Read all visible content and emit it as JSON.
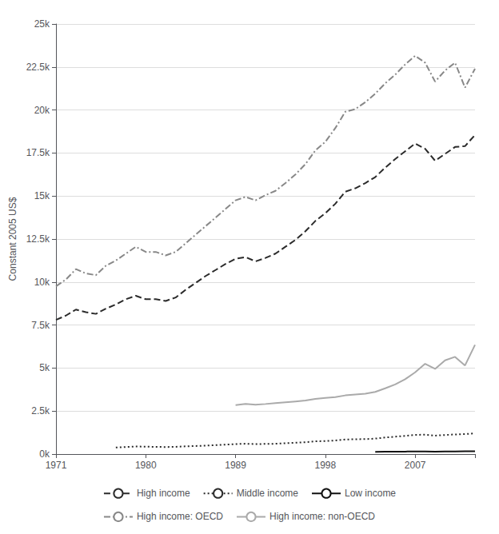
{
  "chart_data": {
    "type": "line",
    "ylabel": "Constant 2005 US$",
    "xlim": [
      1971,
      2013
    ],
    "xticks": [
      1971,
      1980,
      1989,
      1998,
      2007
    ],
    "ylim": [
      0,
      25000
    ],
    "yticks": [
      {
        "value": 0,
        "label": "0k"
      },
      {
        "value": 2500,
        "label": "2.5k"
      },
      {
        "value": 5000,
        "label": "5k"
      },
      {
        "value": 7500,
        "label": "7.5k"
      },
      {
        "value": 10000,
        "label": "10k"
      },
      {
        "value": 12500,
        "label": "12.5k"
      },
      {
        "value": 15000,
        "label": "15k"
      },
      {
        "value": 17500,
        "label": "17.5k"
      },
      {
        "value": 20000,
        "label": "20k"
      },
      {
        "value": 22500,
        "label": "22.5k"
      },
      {
        "value": 25000,
        "label": "25k"
      }
    ],
    "grid": true,
    "legend": "bottom",
    "series": [
      {
        "name": "High income",
        "color": "#2b2b2b",
        "line_style": "dashed",
        "x": [
          1971,
          1972,
          1973,
          1974,
          1975,
          1976,
          1977,
          1978,
          1979,
          1980,
          1981,
          1982,
          1983,
          1984,
          1985,
          1986,
          1987,
          1988,
          1989,
          1990,
          1991,
          1992,
          1993,
          1994,
          1995,
          1996,
          1997,
          1998,
          1999,
          2000,
          2001,
          2002,
          2003,
          2004,
          2005,
          2006,
          2007,
          2008,
          2009,
          2010,
          2011,
          2012,
          2013
        ],
        "values": [
          7800,
          8050,
          8400,
          8250,
          8150,
          8450,
          8700,
          9000,
          9200,
          9000,
          9000,
          8900,
          9100,
          9550,
          9950,
          10350,
          10700,
          11050,
          11350,
          11450,
          11200,
          11400,
          11650,
          12050,
          12450,
          12950,
          13550,
          14000,
          14550,
          15250,
          15450,
          15750,
          16100,
          16650,
          17150,
          17600,
          18050,
          17750,
          17050,
          17450,
          17850,
          17900,
          18550
        ]
      },
      {
        "name": "Middle income",
        "color": "#2b2b2b",
        "line_style": "dotted",
        "x": [
          1977,
          1978,
          1979,
          1980,
          1981,
          1982,
          1983,
          1984,
          1985,
          1986,
          1987,
          1988,
          1989,
          1990,
          1991,
          1992,
          1993,
          1994,
          1995,
          1996,
          1997,
          1998,
          1999,
          2000,
          2001,
          2002,
          2003,
          2004,
          2005,
          2006,
          2007,
          2008,
          2009,
          2010,
          2011,
          2012,
          2013
        ],
        "values": [
          380,
          410,
          440,
          430,
          420,
          410,
          420,
          450,
          470,
          490,
          520,
          550,
          580,
          600,
          580,
          590,
          600,
          630,
          660,
          690,
          740,
          760,
          790,
          850,
          860,
          870,
          900,
          960,
          1010,
          1060,
          1110,
          1130,
          1070,
          1110,
          1140,
          1160,
          1210
        ]
      },
      {
        "name": "Low income",
        "color": "#111111",
        "line_style": "solid",
        "x": [
          2003,
          2004,
          2005,
          2006,
          2007,
          2008,
          2009,
          2010,
          2011,
          2012,
          2013
        ],
        "values": [
          130,
          135,
          140,
          145,
          150,
          155,
          145,
          150,
          155,
          160,
          165
        ]
      },
      {
        "name": "High income: OECD",
        "color": "#888888",
        "line_style": "dashdot",
        "x": [
          1971,
          1972,
          1973,
          1974,
          1975,
          1976,
          1977,
          1978,
          1979,
          1980,
          1981,
          1982,
          1983,
          1984,
          1985,
          1986,
          1987,
          1988,
          1989,
          1990,
          1991,
          1992,
          1993,
          1994,
          1995,
          1996,
          1997,
          1998,
          1999,
          2000,
          2001,
          2002,
          2003,
          2004,
          2005,
          2006,
          2007,
          2008,
          2009,
          2010,
          2011,
          2012,
          2013
        ],
        "values": [
          9750,
          10150,
          10750,
          10500,
          10400,
          10950,
          11250,
          11650,
          12050,
          11750,
          11750,
          11550,
          11750,
          12250,
          12750,
          13250,
          13750,
          14250,
          14750,
          14950,
          14750,
          15050,
          15300,
          15750,
          16250,
          16850,
          17650,
          18150,
          18950,
          19900,
          20050,
          20450,
          20950,
          21550,
          22050,
          22650,
          23150,
          22750,
          21650,
          22300,
          22750,
          21300,
          22400
        ]
      },
      {
        "name": "High income: non-OECD",
        "color": "#aaaaaa",
        "line_style": "solid",
        "x": [
          1989,
          1990,
          1991,
          1992,
          1993,
          1994,
          1995,
          1996,
          1997,
          1998,
          1999,
          2000,
          2001,
          2002,
          2003,
          2004,
          2005,
          2006,
          2007,
          2008,
          2009,
          2010,
          2011,
          2012,
          2013
        ],
        "values": [
          2850,
          2920,
          2870,
          2910,
          2960,
          3010,
          3060,
          3110,
          3210,
          3260,
          3310,
          3410,
          3460,
          3510,
          3610,
          3820,
          4050,
          4350,
          4750,
          5250,
          4950,
          5450,
          5650,
          5150,
          6350
        ]
      }
    ]
  }
}
